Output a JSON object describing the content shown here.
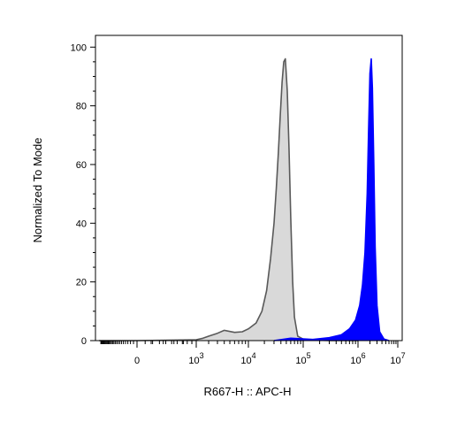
{
  "chart_data": {
    "type": "area",
    "title": "",
    "xlabel": "R667-H :: APC-H",
    "ylabel": "Normalized To Mode",
    "x_scale": "biexponential",
    "xlim": [
      -5000,
      10000000
    ],
    "ylim": [
      0,
      104
    ],
    "yticks": [
      0,
      20,
      40,
      60,
      80,
      100
    ],
    "xtick_labels": [
      {
        "base": "0",
        "exp": ""
      },
      {
        "base": "10",
        "exp": "3"
      },
      {
        "base": "10",
        "exp": "4"
      },
      {
        "base": "10",
        "exp": "5"
      },
      {
        "base": "10",
        "exp": "6"
      },
      {
        "base": "10",
        "exp": "7"
      }
    ],
    "grid": false,
    "legend": "none",
    "series": [
      {
        "color_fill": "#d9d9d9",
        "color_line": "#595959",
        "x": [
          -5000,
          0,
          1000,
          1500,
          2000,
          3000,
          4000,
          6000,
          8000,
          10000,
          14000,
          18000,
          22000,
          26000,
          30000,
          33000,
          36000,
          39000,
          42000,
          45000,
          48000,
          52000,
          56000,
          60000,
          65000,
          70000,
          80000,
          100000,
          150000,
          300000,
          1000000
        ],
        "y": [
          0,
          0,
          0.3,
          0.8,
          1.5,
          2.5,
          3.5,
          2.8,
          3.0,
          4.0,
          6.0,
          10.0,
          17.0,
          28.0,
          40.0,
          52.0,
          64.0,
          77.0,
          88.0,
          95.0,
          96.0,
          85.0,
          65.0,
          42.0,
          20.0,
          8.0,
          1.5,
          0.5,
          0.2,
          0.0,
          0.0
        ]
      },
      {
        "color_fill": "#0000ff",
        "color_line": "#0000ff",
        "x": [
          30000,
          60000,
          150000,
          300000,
          500000,
          700000,
          900000,
          1100000,
          1300000,
          1500000,
          1700000,
          1850000,
          2000000,
          2150000,
          2300000,
          2500000,
          2700000,
          3000000,
          3500000,
          4500000,
          6000000
        ],
        "y": [
          0,
          0.8,
          0.4,
          1.0,
          2.0,
          4.0,
          7.0,
          12.0,
          19.0,
          30.0,
          50.0,
          72.0,
          91.0,
          96.0,
          86.0,
          60.0,
          32.0,
          12.0,
          3.0,
          0.5,
          0.0
        ]
      }
    ]
  }
}
